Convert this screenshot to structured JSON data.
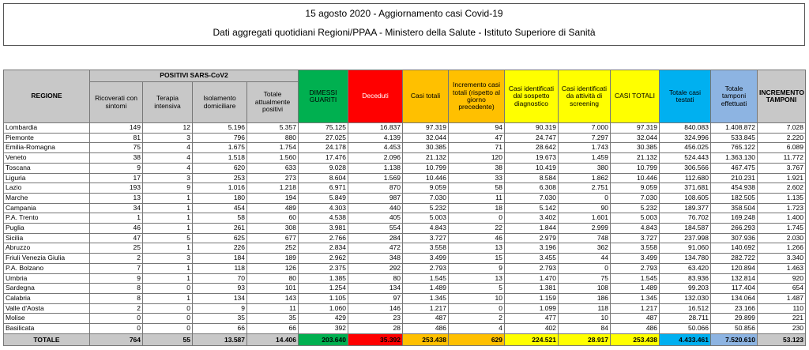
{
  "header": {
    "title": "15 agosto 2020 - Aggiornamento casi Covid-19",
    "subtitle": "Dati aggregati quotidiani Regioni/PPAA - Ministero della Salute - Istituto Superiore di Sanità"
  },
  "table": {
    "group_header": "POSITIVI SARS-CoV2",
    "columns": [
      "REGIONE",
      "Ricoverati con sintomi",
      "Terapia intensiva",
      "Isolamento domiciliare",
      "Totale attualmente positivi",
      "DIMESSI GUARITI",
      "Deceduti",
      "Casi totali",
      "Incremento casi totali (rispetto al giorno precedente)",
      "Casi identificati dal sospetto diagnostico",
      "Casi identificati da attività di screening",
      "CASI TOTALI",
      "Totale casi testati",
      "Totale tamponi effettuati",
      "INCREMENTO TAMPONI"
    ],
    "rows": [
      [
        "Lombardia",
        "149",
        "12",
        "5.196",
        "5.357",
        "75.125",
        "16.837",
        "97.319",
        "94",
        "90.319",
        "7.000",
        "97.319",
        "840.083",
        "1.408.872",
        "7.028"
      ],
      [
        "Piemonte",
        "81",
        "3",
        "796",
        "880",
        "27.025",
        "4.139",
        "32.044",
        "47",
        "24.747",
        "7.297",
        "32.044",
        "324.996",
        "533.845",
        "2.220"
      ],
      [
        "Emilia-Romagna",
        "75",
        "4",
        "1.675",
        "1.754",
        "24.178",
        "4.453",
        "30.385",
        "71",
        "28.642",
        "1.743",
        "30.385",
        "456.025",
        "765.122",
        "6.089"
      ],
      [
        "Veneto",
        "38",
        "4",
        "1.518",
        "1.560",
        "17.476",
        "2.096",
        "21.132",
        "120",
        "19.673",
        "1.459",
        "21.132",
        "524.443",
        "1.363.130",
        "11.772"
      ],
      [
        "Toscana",
        "9",
        "4",
        "620",
        "633",
        "9.028",
        "1.138",
        "10.799",
        "38",
        "10.419",
        "380",
        "10.799",
        "306.566",
        "467.475",
        "3.767"
      ],
      [
        "Liguria",
        "17",
        "3",
        "253",
        "273",
        "8.604",
        "1.569",
        "10.446",
        "33",
        "8.584",
        "1.862",
        "10.446",
        "112.680",
        "210.231",
        "1.921"
      ],
      [
        "Lazio",
        "193",
        "9",
        "1.016",
        "1.218",
        "6.971",
        "870",
        "9.059",
        "58",
        "6.308",
        "2.751",
        "9.059",
        "371.681",
        "454.938",
        "2.602"
      ],
      [
        "Marche",
        "13",
        "1",
        "180",
        "194",
        "5.849",
        "987",
        "7.030",
        "11",
        "7.030",
        "0",
        "7.030",
        "108.605",
        "182.505",
        "1.135"
      ],
      [
        "Campania",
        "34",
        "1",
        "454",
        "489",
        "4.303",
        "440",
        "5.232",
        "18",
        "5.142",
        "90",
        "5.232",
        "189.377",
        "358.504",
        "1.723"
      ],
      [
        "P.A. Trento",
        "1",
        "1",
        "58",
        "60",
        "4.538",
        "405",
        "5.003",
        "0",
        "3.402",
        "1.601",
        "5.003",
        "76.702",
        "169.248",
        "1.400"
      ],
      [
        "Puglia",
        "46",
        "1",
        "261",
        "308",
        "3.981",
        "554",
        "4.843",
        "22",
        "1.844",
        "2.999",
        "4.843",
        "184.587",
        "266.293",
        "1.745"
      ],
      [
        "Sicilia",
        "47",
        "5",
        "625",
        "677",
        "2.766",
        "284",
        "3.727",
        "46",
        "2.979",
        "748",
        "3.727",
        "237.998",
        "307.936",
        "2.030"
      ],
      [
        "Abruzzo",
        "25",
        "1",
        "226",
        "252",
        "2.834",
        "472",
        "3.558",
        "13",
        "3.196",
        "362",
        "3.558",
        "91.060",
        "140.692",
        "1.266"
      ],
      [
        "Friuli Venezia Giulia",
        "2",
        "3",
        "184",
        "189",
        "2.962",
        "348",
        "3.499",
        "15",
        "3.455",
        "44",
        "3.499",
        "134.780",
        "282.722",
        "3.340"
      ],
      [
        "P.A. Bolzano",
        "7",
        "1",
        "118",
        "126",
        "2.375",
        "292",
        "2.793",
        "9",
        "2.793",
        "0",
        "2.793",
        "63.420",
        "120.894",
        "1.463"
      ],
      [
        "Umbria",
        "9",
        "1",
        "70",
        "80",
        "1.385",
        "80",
        "1.545",
        "13",
        "1.470",
        "75",
        "1.545",
        "83.936",
        "132.814",
        "920"
      ],
      [
        "Sardegna",
        "8",
        "0",
        "93",
        "101",
        "1.254",
        "134",
        "1.489",
        "5",
        "1.381",
        "108",
        "1.489",
        "99.203",
        "117.404",
        "654"
      ],
      [
        "Calabria",
        "8",
        "1",
        "134",
        "143",
        "1.105",
        "97",
        "1.345",
        "10",
        "1.159",
        "186",
        "1.345",
        "132.030",
        "134.064",
        "1.487"
      ],
      [
        "Valle d'Aosta",
        "2",
        "0",
        "9",
        "11",
        "1.060",
        "146",
        "1.217",
        "0",
        "1.099",
        "118",
        "1.217",
        "16.512",
        "23.166",
        "110"
      ],
      [
        "Molise",
        "0",
        "0",
        "35",
        "35",
        "429",
        "23",
        "487",
        "2",
        "477",
        "10",
        "487",
        "28.711",
        "29.899",
        "221"
      ],
      [
        "Basilicata",
        "0",
        "0",
        "66",
        "66",
        "392",
        "28",
        "486",
        "4",
        "402",
        "84",
        "486",
        "50.066",
        "50.856",
        "230"
      ]
    ],
    "total": [
      "TOTALE",
      "764",
      "55",
      "13.587",
      "14.406",
      "203.640",
      "35.392",
      "253.438",
      "629",
      "224.521",
      "28.917",
      "253.438",
      "4.433.461",
      "7.520.610",
      "53.123"
    ]
  }
}
